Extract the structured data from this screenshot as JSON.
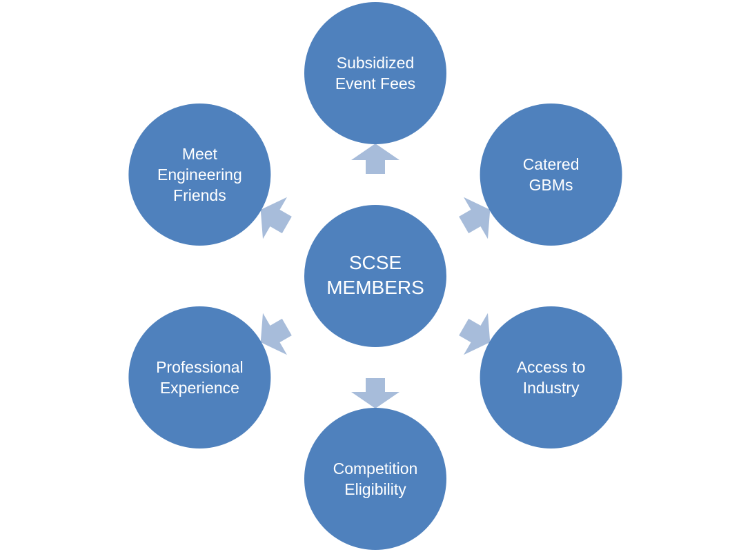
{
  "colors": {
    "node_fill": "#4f81bd",
    "arrow_fill": "#a7bcda",
    "background": "#ffffff"
  },
  "center": {
    "lines": [
      "SCSE",
      "MEMBERS"
    ]
  },
  "nodes": [
    {
      "id": "subsidized-event-fees",
      "lines": [
        "Subsidized",
        "Event Fees"
      ]
    },
    {
      "id": "catered-gbms",
      "lines": [
        "Catered",
        "GBMs"
      ]
    },
    {
      "id": "access-to-industry",
      "lines": [
        "Access to",
        "Industry"
      ]
    },
    {
      "id": "competition-eligibility",
      "lines": [
        "Competition",
        "Eligibility"
      ]
    },
    {
      "id": "professional-experience",
      "lines": [
        "Professional",
        "Experience"
      ]
    },
    {
      "id": "meet-engineering-friends",
      "lines": [
        "Meet",
        "Engineering",
        "Friends"
      ]
    }
  ]
}
